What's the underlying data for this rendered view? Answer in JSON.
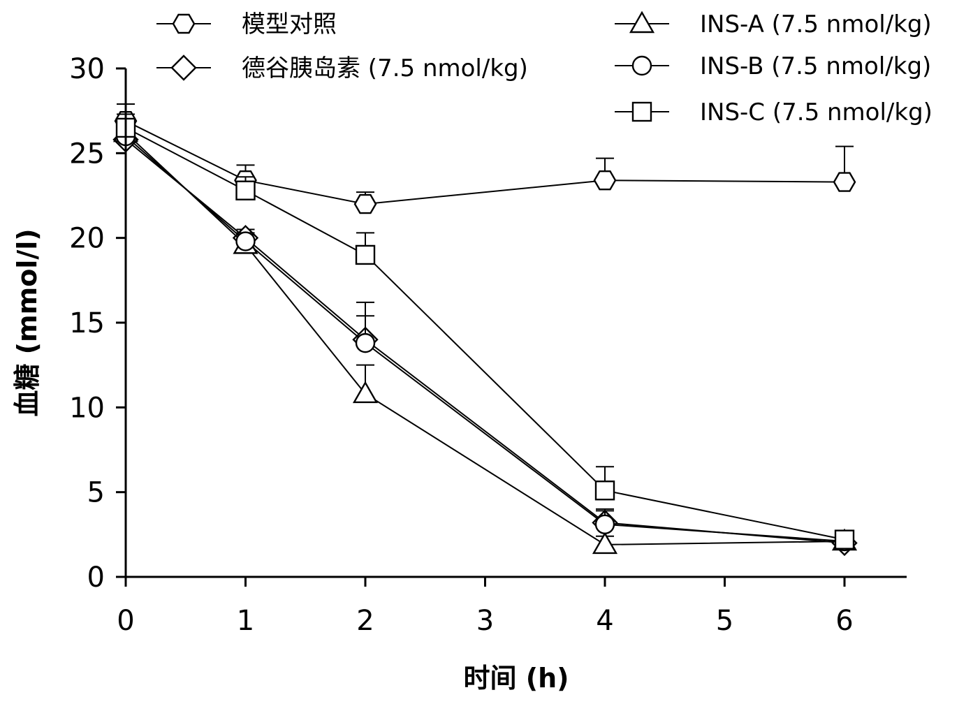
{
  "chart_data": {
    "type": "line",
    "xlabel": "时间 (h)",
    "ylabel": "血糖 (mmol/l)",
    "xlim": [
      0,
      6
    ],
    "ylim": [
      0,
      30
    ],
    "xticks": [
      0,
      1,
      2,
      3,
      4,
      5,
      6
    ],
    "yticks": [
      0,
      5,
      10,
      15,
      20,
      25,
      30
    ],
    "grid": false,
    "legend_position": "top",
    "series": [
      {
        "name": "模型对照",
        "marker": "hexagon",
        "x": [
          0,
          1,
          2,
          4,
          6
        ],
        "y": [
          26.9,
          23.4,
          22.0,
          23.4,
          23.3
        ],
        "error": [
          1.0,
          0.9,
          0.7,
          1.3,
          2.1
        ]
      },
      {
        "name": "德谷胰岛素 (7.5 nmol/kg)",
        "marker": "diamond",
        "x": [
          0,
          1,
          2,
          4,
          6
        ],
        "y": [
          25.8,
          20.0,
          14.0,
          3.2,
          2.0
        ],
        "error": [
          0.8,
          0.5,
          2.2,
          0.8,
          0.3
        ]
      },
      {
        "name": "INS-A (7.5 nmol/kg)",
        "marker": "triangle",
        "x": [
          0,
          1,
          2,
          4,
          6
        ],
        "y": [
          26.2,
          19.6,
          10.8,
          1.9,
          2.1
        ],
        "error": [
          0.7,
          0.6,
          1.7,
          0.5,
          0.3
        ]
      },
      {
        "name": "INS-B (7.5 nmol/kg)",
        "marker": "circle",
        "x": [
          0,
          1,
          2,
          4,
          6
        ],
        "y": [
          26.0,
          19.8,
          13.8,
          3.1,
          2.1
        ],
        "error": [
          0.9,
          0.5,
          1.6,
          0.8,
          0.3
        ]
      },
      {
        "name": "INS-C (7.5 nmol/kg)",
        "marker": "square",
        "x": [
          0,
          1,
          2,
          4,
          6
        ],
        "y": [
          26.5,
          22.8,
          19.0,
          5.1,
          2.2
        ],
        "error": [
          0.8,
          0.8,
          1.3,
          1.4,
          0.3
        ]
      }
    ]
  }
}
